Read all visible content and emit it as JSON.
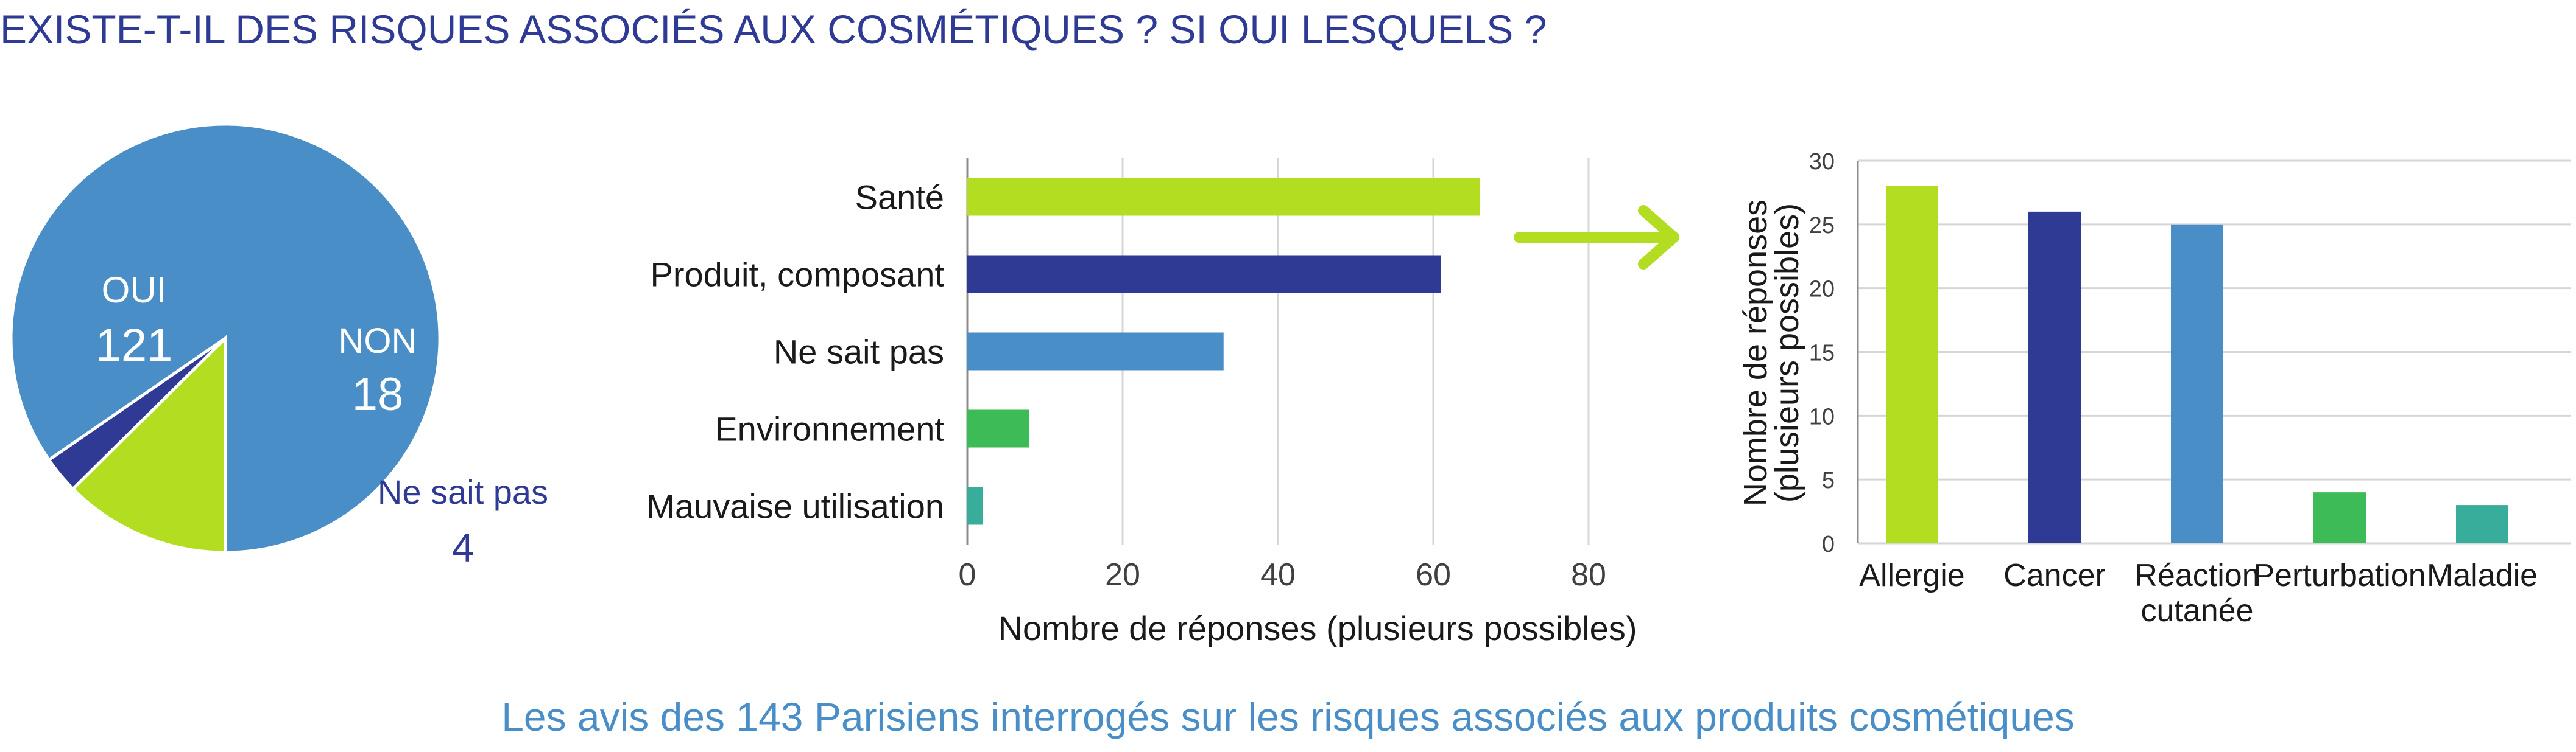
{
  "title": "EXISTE-T-IL DES RISQUES ASSOCIÉS AUX COSMÉTIQUES ? SI OUI LESQUELS ?",
  "caption": "Les avis des 143 Parisiens interrogés sur les risques associés aux produits cosmétiques",
  "colors": {
    "title": "#2e3a94",
    "caption": "#4a8ec8",
    "blue": "#4a8ec8",
    "lime": "#b3dd20",
    "navy": "#2e3a94",
    "green": "#3dbb56",
    "teal": "#39ad9c",
    "grid": "#d6d6d6"
  },
  "chart_data": [
    {
      "type": "pie",
      "slices": [
        {
          "label": "OUI",
          "value": 121,
          "value_label": "121",
          "color": "#4a8ec8"
        },
        {
          "label": "NON",
          "value": 18,
          "value_label": "18",
          "color": "#b3dd20"
        },
        {
          "label": "Ne sait pas",
          "value": 4,
          "value_label": "4",
          "color": "#2e3a94"
        }
      ]
    },
    {
      "type": "bar",
      "orientation": "horizontal",
      "categories": [
        "Santé",
        "Produit, composant",
        "Ne sait pas",
        "Environnement",
        "Mauvaise utilisation"
      ],
      "values": [
        66,
        61,
        33,
        8,
        2
      ],
      "colors": [
        "#b3dd20",
        "#2e3a94",
        "#4a8ec8",
        "#3dbb56",
        "#39ad9c"
      ],
      "xlabel": "Nombre de réponses (plusieurs possibles)",
      "xlim": [
        0,
        80
      ],
      "xticks": [
        "0",
        "20",
        "40",
        "60",
        "80"
      ],
      "grid": true
    },
    {
      "type": "bar",
      "orientation": "vertical",
      "categories": [
        "Allergie",
        "Cancer",
        "Réaction cutanée",
        "Perturbation",
        "Maladie"
      ],
      "category_lines": [
        [
          "Allergie"
        ],
        [
          "Cancer"
        ],
        [
          "Réaction",
          "cutanée"
        ],
        [
          "Perturbation"
        ],
        [
          "Maladie"
        ]
      ],
      "values": [
        28,
        26,
        25,
        4,
        3
      ],
      "colors": [
        "#b3dd20",
        "#2e3a94",
        "#4a8ec8",
        "#3dbb56",
        "#39ad9c"
      ],
      "ylabel_lines": [
        "Nombre de réponses",
        "(plusieurs possibles)"
      ],
      "ylim": [
        0,
        30
      ],
      "yticks": [
        "0",
        "5",
        "10",
        "15",
        "20",
        "25",
        "30"
      ],
      "grid": true
    }
  ]
}
